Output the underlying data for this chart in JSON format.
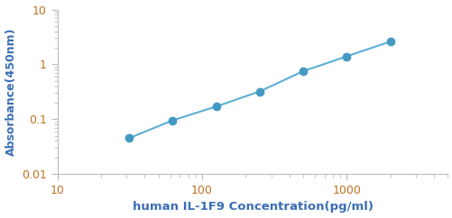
{
  "x": [
    31.25,
    62.5,
    125,
    250,
    500,
    1000,
    2000
  ],
  "y": [
    0.045,
    0.095,
    0.17,
    0.32,
    0.75,
    1.4,
    2.6
  ],
  "line_color": "#5bafd6",
  "marker_color": "#4499c2",
  "marker_size": 6,
  "line_width": 1.5,
  "xlabel": "human IL-1F9 Concentration(pg/ml)",
  "ylabel": "Absorbance(450nm)",
  "xlim_log": [
    1,
    3.699
  ],
  "ylim_log": [
    -2,
    1
  ],
  "xlim": [
    10,
    5000
  ],
  "ylim": [
    0.01,
    10
  ],
  "background_color": "#ffffff",
  "figure_color": "#ffffff",
  "xlabel_fontsize": 9.5,
  "ylabel_fontsize": 9,
  "tick_fontsize": 9,
  "spine_color": "#bbbbbb",
  "xlabel_color": "#3a6eb5",
  "ylabel_color": "#3a6eb5",
  "tick_label_color": "#c07020"
}
